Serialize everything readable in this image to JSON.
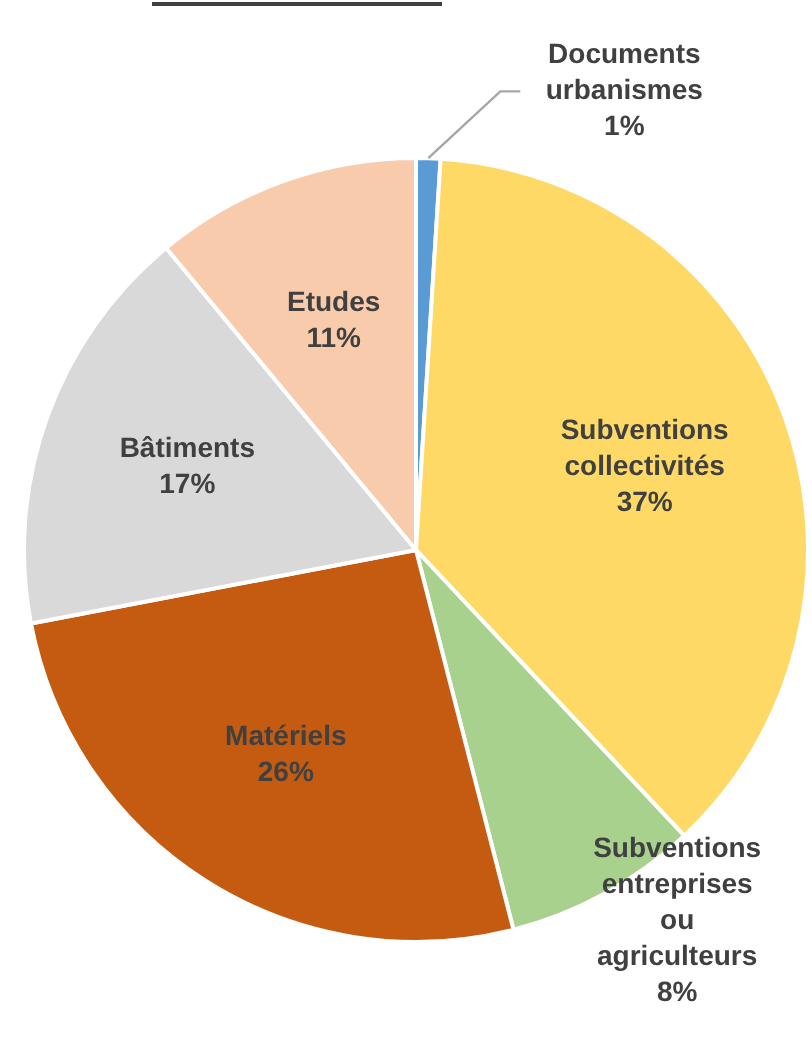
{
  "chart_data": {
    "type": "pie",
    "categories": [
      "Documents urbanismes",
      "Subventions collectivités",
      "Subventions entreprises ou agriculteurs",
      "Matériels",
      "Bâtiments",
      "Etudes"
    ],
    "values": [
      1,
      37,
      8,
      26,
      17,
      11
    ],
    "colors": [
      "#5b9bd5",
      "#ffd966",
      "#a9d18e",
      "#c55a11",
      "#d9d9d9",
      "#f8cbad"
    ],
    "value_labels": [
      "1%",
      "37%",
      "8%",
      "26%",
      "17%",
      "11%"
    ],
    "legend": false
  }
}
